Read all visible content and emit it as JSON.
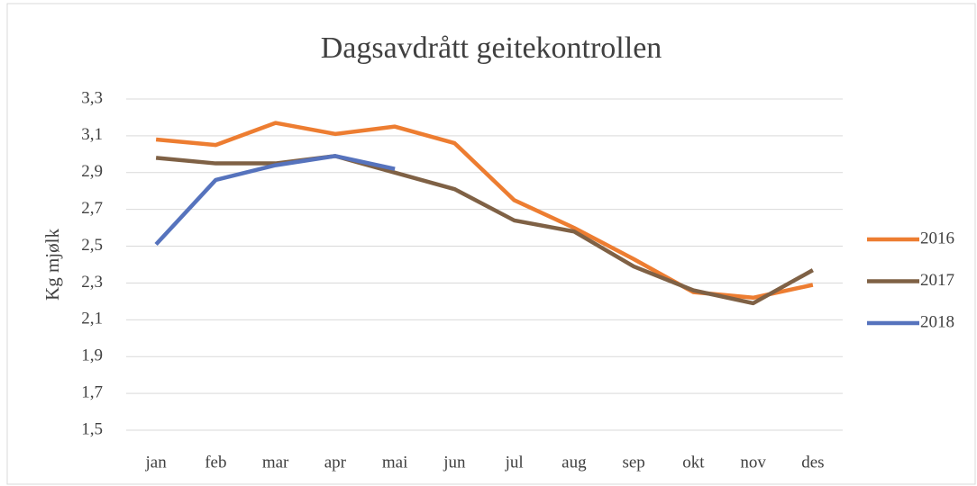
{
  "chart_data": {
    "type": "line",
    "title": "Dagsavdrått geitekontrollen",
    "y_label": "Kg mjølk",
    "categories": [
      "jan",
      "feb",
      "mar",
      "apr",
      "mai",
      "jun",
      "jul",
      "aug",
      "sep",
      "okt",
      "nov",
      "des"
    ],
    "series": [
      {
        "name": "2016",
        "color": "#ed7d31",
        "values": [
          3.08,
          3.05,
          3.17,
          3.11,
          3.15,
          3.06,
          2.75,
          2.6,
          2.43,
          2.25,
          2.22,
          2.29
        ]
      },
      {
        "name": "2017",
        "color": "#7f6145",
        "values": [
          2.98,
          2.95,
          2.95,
          2.99,
          2.9,
          2.81,
          2.64,
          2.58,
          2.39,
          2.26,
          2.19,
          2.37
        ]
      },
      {
        "name": "2018",
        "color": "#5673bd",
        "values": [
          2.51,
          2.86,
          2.94,
          2.99,
          2.92,
          null,
          null,
          null,
          null,
          null,
          null,
          null
        ]
      }
    ],
    "ylim": [
      1.5,
      3.3
    ],
    "yticks": [
      {
        "value": 1.5,
        "label": "1,5"
      },
      {
        "value": 1.7,
        "label": "1,7"
      },
      {
        "value": 1.9,
        "label": "1,9"
      },
      {
        "value": 2.1,
        "label": "2,1"
      },
      {
        "value": 2.3,
        "label": "2,3"
      },
      {
        "value": 2.5,
        "label": "2,5"
      },
      {
        "value": 2.7,
        "label": "2,7"
      },
      {
        "value": 2.9,
        "label": "2,9"
      },
      {
        "value": 3.1,
        "label": "3,1"
      },
      {
        "value": 3.3,
        "label": "3,3"
      }
    ],
    "grid": true,
    "legend": "right"
  }
}
